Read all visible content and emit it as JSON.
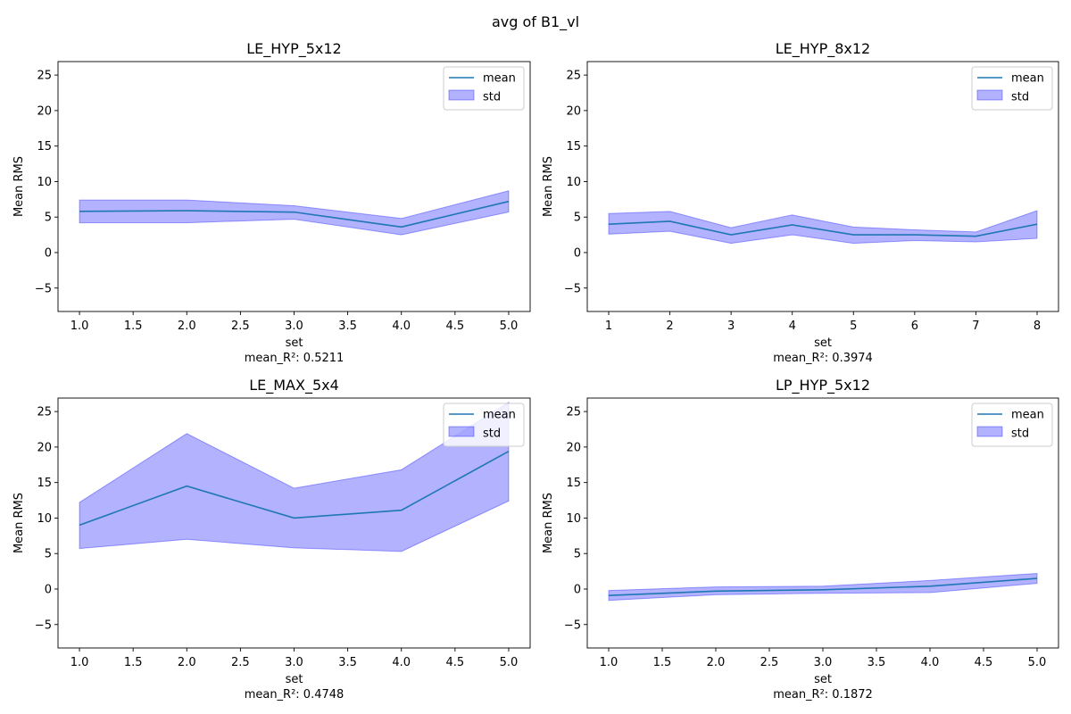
{
  "figure": {
    "suptitle": "avg of B1_vl"
  },
  "colors": {
    "mean_line": "#1f77b4",
    "std_fill": "#0000ff",
    "std_fill_alpha": 0.3,
    "std_edge": "#0000ff"
  },
  "chart_data": [
    {
      "type": "line",
      "title": "LE_HYP_5x12",
      "xlabel": "set",
      "ylabel": "Mean RMS",
      "note": "mean_R²: 0.5211",
      "xlim": [
        0.8,
        5.2
      ],
      "ylim": [
        -8.3,
        26.9
      ],
      "xticks": [
        1.0,
        1.5,
        2.0,
        2.5,
        3.0,
        3.5,
        4.0,
        4.5,
        5.0
      ],
      "xtick_labels": [
        "1.0",
        "1.5",
        "2.0",
        "2.5",
        "3.0",
        "3.5",
        "4.0",
        "4.5",
        "5.0"
      ],
      "yticks": [
        -5,
        0,
        5,
        10,
        15,
        20,
        25
      ],
      "ytick_labels": [
        "−5",
        "0",
        "5",
        "10",
        "15",
        "20",
        "25"
      ],
      "legend": {
        "position": "top-right",
        "entries": [
          "mean",
          "std"
        ]
      },
      "x": [
        1,
        2,
        3,
        4,
        5
      ],
      "series": [
        {
          "name": "mean",
          "kind": "line",
          "values": [
            5.8,
            5.9,
            5.7,
            3.6,
            7.2
          ]
        },
        {
          "name": "std",
          "kind": "band",
          "lower": [
            4.2,
            4.2,
            4.7,
            2.5,
            5.7
          ],
          "upper": [
            7.4,
            7.4,
            6.6,
            4.8,
            8.7
          ]
        }
      ]
    },
    {
      "type": "line",
      "title": "LE_HYP_8x12",
      "xlabel": "set",
      "ylabel": "Mean RMS",
      "note": "mean_R²: 0.3974",
      "xlim": [
        0.65,
        8.35
      ],
      "ylim": [
        -8.3,
        26.9
      ],
      "xticks": [
        1,
        2,
        3,
        4,
        5,
        6,
        7,
        8
      ],
      "xtick_labels": [
        "1",
        "2",
        "3",
        "4",
        "5",
        "6",
        "7",
        "8"
      ],
      "yticks": [
        -5,
        0,
        5,
        10,
        15,
        20,
        25
      ],
      "ytick_labels": [
        "−5",
        "0",
        "5",
        "10",
        "15",
        "20",
        "25"
      ],
      "legend": {
        "position": "top-right",
        "entries": [
          "mean",
          "std"
        ]
      },
      "x": [
        1,
        2,
        3,
        4,
        5,
        6,
        7,
        8
      ],
      "series": [
        {
          "name": "mean",
          "kind": "line",
          "values": [
            4.0,
            4.4,
            2.5,
            3.9,
            2.5,
            2.5,
            2.3,
            4.0
          ]
        },
        {
          "name": "std",
          "kind": "band",
          "lower": [
            2.6,
            3.0,
            1.3,
            2.5,
            1.3,
            1.7,
            1.5,
            2.0
          ],
          "upper": [
            5.5,
            5.8,
            3.5,
            5.3,
            3.6,
            3.2,
            2.9,
            5.9
          ]
        }
      ]
    },
    {
      "type": "line",
      "title": "LE_MAX_5x4",
      "xlabel": "set",
      "ylabel": "Mean RMS",
      "note": "mean_R²: 0.4748",
      "xlim": [
        0.8,
        5.2
      ],
      "ylim": [
        -8.3,
        26.9
      ],
      "xticks": [
        1.0,
        1.5,
        2.0,
        2.5,
        3.0,
        3.5,
        4.0,
        4.5,
        5.0
      ],
      "xtick_labels": [
        "1.0",
        "1.5",
        "2.0",
        "2.5",
        "3.0",
        "3.5",
        "4.0",
        "4.5",
        "5.0"
      ],
      "yticks": [
        -5,
        0,
        5,
        10,
        15,
        20,
        25
      ],
      "ytick_labels": [
        "−5",
        "0",
        "5",
        "10",
        "15",
        "20",
        "25"
      ],
      "legend": {
        "position": "top-right",
        "entries": [
          "mean",
          "std"
        ]
      },
      "x": [
        1,
        2,
        3,
        4,
        5
      ],
      "series": [
        {
          "name": "mean",
          "kind": "line",
          "values": [
            9.0,
            14.5,
            10.0,
            11.1,
            19.4
          ]
        },
        {
          "name": "std",
          "kind": "band",
          "lower": [
            5.7,
            7.0,
            5.8,
            5.3,
            12.4
          ],
          "upper": [
            12.2,
            21.9,
            14.2,
            16.8,
            26.3
          ]
        }
      ]
    },
    {
      "type": "line",
      "title": "LP_HYP_5x12",
      "xlabel": "set",
      "ylabel": "Mean RMS",
      "note": "mean_R²: 0.1872",
      "xlim": [
        0.8,
        5.2
      ],
      "ylim": [
        -8.3,
        26.9
      ],
      "xticks": [
        1.0,
        1.5,
        2.0,
        2.5,
        3.0,
        3.5,
        4.0,
        4.5,
        5.0
      ],
      "xtick_labels": [
        "1.0",
        "1.5",
        "2.0",
        "2.5",
        "3.0",
        "3.5",
        "4.0",
        "4.5",
        "5.0"
      ],
      "yticks": [
        -5,
        0,
        5,
        10,
        15,
        20,
        25
      ],
      "ytick_labels": [
        "−5",
        "0",
        "5",
        "10",
        "15",
        "20",
        "25"
      ],
      "legend": {
        "position": "top-right",
        "entries": [
          "mean",
          "std"
        ]
      },
      "x": [
        1,
        2,
        3,
        4,
        5
      ],
      "series": [
        {
          "name": "mean",
          "kind": "line",
          "values": [
            -0.9,
            -0.3,
            -0.1,
            0.4,
            1.5
          ]
        },
        {
          "name": "std",
          "kind": "band",
          "lower": [
            -1.6,
            -0.8,
            -0.6,
            -0.5,
            0.8
          ],
          "upper": [
            -0.2,
            0.3,
            0.4,
            1.2,
            2.2
          ]
        }
      ]
    }
  ]
}
